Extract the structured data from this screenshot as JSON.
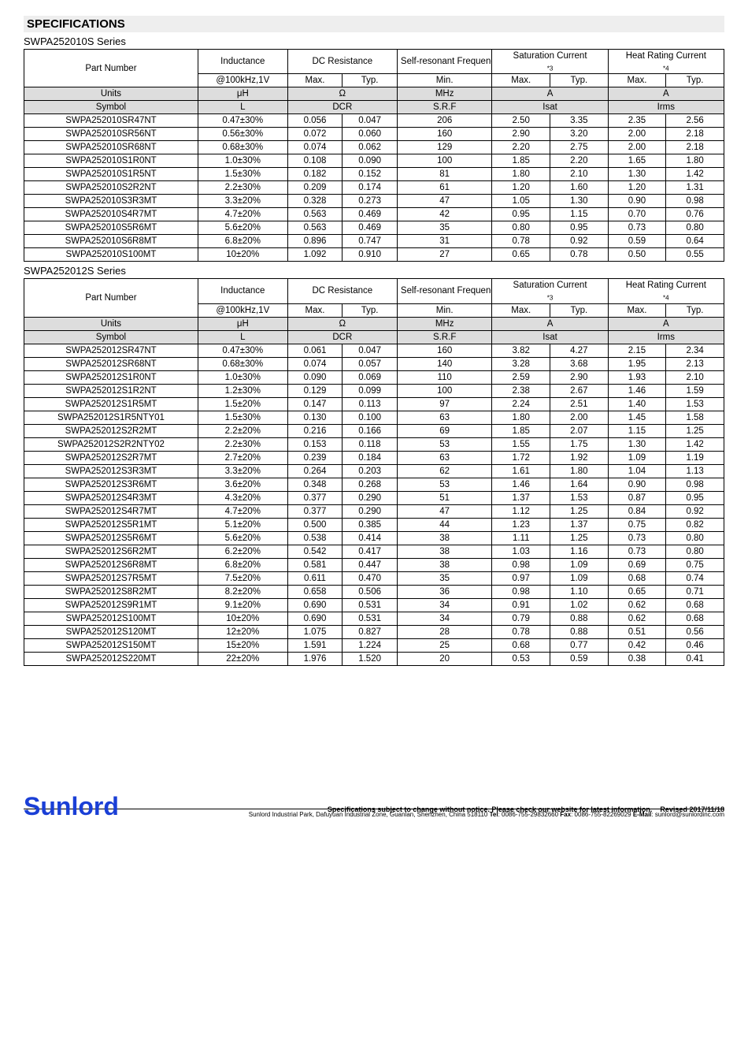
{
  "title": "SPECIFICATIONS",
  "headers": {
    "part_number": "Part Number",
    "inductance": "Inductance",
    "dc_resistance": "DC Resistance",
    "srf": "Self-resonant Frequency",
    "sat_current": "Saturation Current",
    "sat_note": "*3",
    "heat_rating": "Heat Rating Current",
    "heat_note": "*4",
    "cond": "@100kHz,1V",
    "max": "Max.",
    "typ": "Typ.",
    "min": "Min.",
    "units": "Units",
    "uH": "μH",
    "ohm": "Ω",
    "mhz": "MHz",
    "amp": "A",
    "symbol": "Symbol",
    "L": "L",
    "DCR": "DCR",
    "SRF": "S.R.F",
    "Isat": "Isat",
    "Irms": "Irms"
  },
  "series1": {
    "title": "SWPA252010S Series",
    "rows": [
      [
        "SWPA252010SR47NT",
        "0.47±30%",
        "0.056",
        "0.047",
        "206",
        "2.50",
        "3.35",
        "2.35",
        "2.56"
      ],
      [
        "SWPA252010SR56NT",
        "0.56±30%",
        "0.072",
        "0.060",
        "160",
        "2.90",
        "3.20",
        "2.00",
        "2.18"
      ],
      [
        "SWPA252010SR68NT",
        "0.68±30%",
        "0.074",
        "0.062",
        "129",
        "2.20",
        "2.75",
        "2.00",
        "2.18"
      ],
      [
        "SWPA252010S1R0NT",
        "1.0±30%",
        "0.108",
        "0.090",
        "100",
        "1.85",
        "2.20",
        "1.65",
        "1.80"
      ],
      [
        "SWPA252010S1R5NT",
        "1.5±30%",
        "0.182",
        "0.152",
        "81",
        "1.80",
        "2.10",
        "1.30",
        "1.42"
      ],
      [
        "SWPA252010S2R2NT",
        "2.2±30%",
        "0.209",
        "0.174",
        "61",
        "1.20",
        "1.60",
        "1.20",
        "1.31"
      ],
      [
        "SWPA252010S3R3MT",
        "3.3±20%",
        "0.328",
        "0.273",
        "47",
        "1.05",
        "1.30",
        "0.90",
        "0.98"
      ],
      [
        "SWPA252010S4R7MT",
        "4.7±20%",
        "0.563",
        "0.469",
        "42",
        "0.95",
        "1.15",
        "0.70",
        "0.76"
      ],
      [
        "SWPA252010S5R6MT",
        "5.6±20%",
        "0.563",
        "0.469",
        "35",
        "0.80",
        "0.95",
        "0.73",
        "0.80"
      ],
      [
        "SWPA252010S6R8MT",
        "6.8±20%",
        "0.896",
        "0.747",
        "31",
        "0.78",
        "0.92",
        "0.59",
        "0.64"
      ],
      [
        "SWPA252010S100MT",
        "10±20%",
        "1.092",
        "0.910",
        "27",
        "0.65",
        "0.78",
        "0.50",
        "0.55"
      ]
    ]
  },
  "series2": {
    "title": "SWPA252012S Series",
    "rows": [
      [
        "SWPA252012SR47NT",
        "0.47±30%",
        "0.061",
        "0.047",
        "160",
        "3.82",
        "4.27",
        "2.15",
        "2.34"
      ],
      [
        "SWPA252012SR68NT",
        "0.68±30%",
        "0.074",
        "0.057",
        "140",
        "3.28",
        "3.68",
        "1.95",
        "2.13"
      ],
      [
        "SWPA252012S1R0NT",
        "1.0±30%",
        "0.090",
        "0.069",
        "110",
        "2.59",
        "2.90",
        "1.93",
        "2.10"
      ],
      [
        "SWPA252012S1R2NT",
        "1.2±30%",
        "0.129",
        "0.099",
        "100",
        "2.38",
        "2.67",
        "1.46",
        "1.59"
      ],
      [
        "SWPA252012S1R5MT",
        "1.5±20%",
        "0.147",
        "0.113",
        "97",
        "2.24",
        "2.51",
        "1.40",
        "1.53"
      ],
      [
        "SWPA252012S1R5NTY01",
        "1.5±30%",
        "0.130",
        "0.100",
        "63",
        "1.80",
        "2.00",
        "1.45",
        "1.58"
      ],
      [
        "SWPA252012S2R2MT",
        "2.2±20%",
        "0.216",
        "0.166",
        "69",
        "1.85",
        "2.07",
        "1.15",
        "1.25"
      ],
      [
        "SWPA252012S2R2NTY02",
        "2.2±30%",
        "0.153",
        "0.118",
        "53",
        "1.55",
        "1.75",
        "1.30",
        "1.42"
      ],
      [
        "SWPA252012S2R7MT",
        "2.7±20%",
        "0.239",
        "0.184",
        "63",
        "1.72",
        "1.92",
        "1.09",
        "1.19"
      ],
      [
        "SWPA252012S3R3MT",
        "3.3±20%",
        "0.264",
        "0.203",
        "62",
        "1.61",
        "1.80",
        "1.04",
        "1.13"
      ],
      [
        "SWPA252012S3R6MT",
        "3.6±20%",
        "0.348",
        "0.268",
        "53",
        "1.46",
        "1.64",
        "0.90",
        "0.98"
      ],
      [
        "SWPA252012S4R3MT",
        "4.3±20%",
        "0.377",
        "0.290",
        "51",
        "1.37",
        "1.53",
        "0.87",
        "0.95"
      ],
      [
        "SWPA252012S4R7MT",
        "4.7±20%",
        "0.377",
        "0.290",
        "47",
        "1.12",
        "1.25",
        "0.84",
        "0.92"
      ],
      [
        "SWPA252012S5R1MT",
        "5.1±20%",
        "0.500",
        "0.385",
        "44",
        "1.23",
        "1.37",
        "0.75",
        "0.82"
      ],
      [
        "SWPA252012S5R6MT",
        "5.6±20%",
        "0.538",
        "0.414",
        "38",
        "1.11",
        "1.25",
        "0.73",
        "0.80"
      ],
      [
        "SWPA252012S6R2MT",
        "6.2±20%",
        "0.542",
        "0.417",
        "38",
        "1.03",
        "1.16",
        "0.73",
        "0.80"
      ],
      [
        "SWPA252012S6R8MT",
        "6.8±20%",
        "0.581",
        "0.447",
        "38",
        "0.98",
        "1.09",
        "0.69",
        "0.75"
      ],
      [
        "SWPA252012S7R5MT",
        "7.5±20%",
        "0.611",
        "0.470",
        "35",
        "0.97",
        "1.09",
        "0.68",
        "0.74"
      ],
      [
        "SWPA252012S8R2MT",
        "8.2±20%",
        "0.658",
        "0.506",
        "36",
        "0.98",
        "1.10",
        "0.65",
        "0.71"
      ],
      [
        "SWPA252012S9R1MT",
        "9.1±20%",
        "0.690",
        "0.531",
        "34",
        "0.91",
        "1.02",
        "0.62",
        "0.68"
      ],
      [
        "SWPA252012S100MT",
        "10±20%",
        "0.690",
        "0.531",
        "34",
        "0.79",
        "0.88",
        "0.62",
        "0.68"
      ],
      [
        "SWPA252012S120MT",
        "12±20%",
        "1.075",
        "0.827",
        "28",
        "0.78",
        "0.88",
        "0.51",
        "0.56"
      ],
      [
        "SWPA252012S150MT",
        "15±20%",
        "1.591",
        "1.224",
        "25",
        "0.68",
        "0.77",
        "0.42",
        "0.46"
      ],
      [
        "SWPA252012S220MT",
        "22±20%",
        "1.976",
        "1.520",
        "20",
        "0.53",
        "0.59",
        "0.38",
        "0.41"
      ]
    ]
  },
  "footer": {
    "logo": "Sunlord",
    "disclaimer": "Specifications subject to change without notice. Please check our website for latest information.",
    "revised": "Revised 2017/11/18",
    "address_pre": "Sunlord Industrial Park, Dafuyuan Industrial Zone, Guanlan, Shenzhen, China 518110 ",
    "tel_label": "Tel",
    "tel": ": 0086-755-29832660 ",
    "fax_label": "Fax",
    "fax": ": 0086-755-82269029 ",
    "email_label": "E-Mail",
    "email": ": sunlord@sunlordinc.com"
  }
}
